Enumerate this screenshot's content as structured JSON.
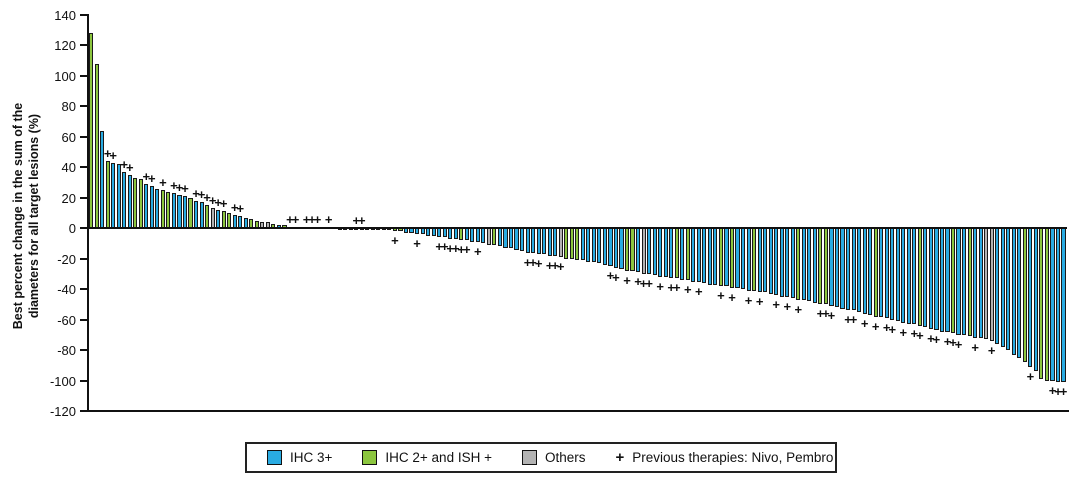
{
  "chart_data": {
    "type": "bar",
    "subtype": "waterfall",
    "title": "",
    "ylabel_line1": "Best percent change in the sum of the",
    "ylabel_line2": "diameters for all target lesions (%)",
    "ylim": [
      -120,
      140
    ],
    "yticks": [
      140,
      120,
      100,
      80,
      60,
      40,
      20,
      0,
      -20,
      -40,
      -60,
      -80,
      -100,
      -120
    ],
    "grid": "off",
    "legend_position": "bottom",
    "colors": {
      "b": "#29ABE2",
      "g": "#8CC63F",
      "o": "#B3B3B3",
      "axis": "#111111"
    },
    "legend": [
      {
        "label": "IHC 3+",
        "color": "#29ABE2"
      },
      {
        "label": "IHC 2+ and ISH +",
        "color": "#8CC63F"
      },
      {
        "label": "Others",
        "color": "#B3B3B3"
      },
      {
        "label": "Previous therapies: Nivo, Pembro",
        "symbol": "+"
      }
    ],
    "bar_format": [
      "value_percent",
      "category: b=IHC 3+, g=IHC 2+ and ISH +, o=Others",
      "previous_therapies_marker 1=yes"
    ],
    "bars": [
      [
        128,
        "g",
        0
      ],
      [
        108,
        "g",
        0
      ],
      [
        64,
        "b",
        0
      ],
      [
        44,
        "g",
        1
      ],
      [
        43,
        "b",
        1
      ],
      [
        42,
        "b",
        0
      ],
      [
        37,
        "b",
        1
      ],
      [
        35,
        "b",
        1
      ],
      [
        33,
        "g",
        0
      ],
      [
        32,
        "g",
        0
      ],
      [
        29,
        "b",
        1
      ],
      [
        28,
        "b",
        1
      ],
      [
        26,
        "b",
        0
      ],
      [
        25,
        "g",
        1
      ],
      [
        24,
        "g",
        0
      ],
      [
        23,
        "b",
        1
      ],
      [
        22,
        "b",
        1
      ],
      [
        21,
        "b",
        1
      ],
      [
        20,
        "g",
        0
      ],
      [
        18,
        "b",
        1
      ],
      [
        17,
        "b",
        1
      ],
      [
        15,
        "g",
        1
      ],
      [
        13,
        "o",
        1
      ],
      [
        12,
        "b",
        1
      ],
      [
        11,
        "g",
        1
      ],
      [
        10,
        "g",
        0
      ],
      [
        9,
        "b",
        1
      ],
      [
        8,
        "b",
        1
      ],
      [
        7,
        "b",
        0
      ],
      [
        6,
        "g",
        0
      ],
      [
        5,
        "g",
        0
      ],
      [
        4,
        "o",
        0
      ],
      [
        4,
        "o",
        0
      ],
      [
        3,
        "g",
        0
      ],
      [
        2,
        "b",
        0
      ],
      [
        2,
        "g",
        0
      ],
      [
        1,
        "g",
        1
      ],
      [
        1,
        "b",
        1
      ],
      [
        1,
        "b",
        0
      ],
      [
        1,
        "b",
        1
      ],
      [
        1,
        "b",
        1
      ],
      [
        0.5,
        "b",
        1
      ],
      [
        0.5,
        "b",
        0
      ],
      [
        0.5,
        "b",
        1
      ],
      [
        0.5,
        "b",
        0
      ],
      [
        0,
        "b",
        0
      ],
      [
        0,
        "b",
        0
      ],
      [
        0,
        "b",
        0
      ],
      [
        0,
        "b",
        1
      ],
      [
        0,
        "b",
        1
      ],
      [
        0,
        "b",
        0
      ],
      [
        -0.5,
        "b",
        0
      ],
      [
        -0.5,
        "b",
        0
      ],
      [
        -1,
        "b",
        0
      ],
      [
        -1,
        "g",
        0
      ],
      [
        -2,
        "g",
        1
      ],
      [
        -2,
        "g",
        0
      ],
      [
        -3,
        "b",
        0
      ],
      [
        -3,
        "b",
        0
      ],
      [
        -4,
        "b",
        1
      ],
      [
        -4,
        "b",
        0
      ],
      [
        -5,
        "b",
        0
      ],
      [
        -5,
        "b",
        0
      ],
      [
        -6,
        "b",
        1
      ],
      [
        -6,
        "b",
        1
      ],
      [
        -7,
        "b",
        1
      ],
      [
        -7,
        "b",
        1
      ],
      [
        -8,
        "g",
        1
      ],
      [
        -8,
        "b",
        1
      ],
      [
        -9,
        "b",
        0
      ],
      [
        -9,
        "b",
        1
      ],
      [
        -10,
        "b",
        0
      ],
      [
        -11,
        "o",
        0
      ],
      [
        -11,
        "g",
        0
      ],
      [
        -12,
        "b",
        0
      ],
      [
        -13,
        "b",
        0
      ],
      [
        -13,
        "b",
        0
      ],
      [
        -14,
        "b",
        0
      ],
      [
        -15,
        "b",
        0
      ],
      [
        -16,
        "b",
        1
      ],
      [
        -16,
        "b",
        1
      ],
      [
        -17,
        "b",
        1
      ],
      [
        -17,
        "b",
        0
      ],
      [
        -18,
        "b",
        1
      ],
      [
        -18,
        "b",
        1
      ],
      [
        -19,
        "o",
        1
      ],
      [
        -20,
        "g",
        0
      ],
      [
        -20,
        "g",
        0
      ],
      [
        -21,
        "g",
        0
      ],
      [
        -21,
        "b",
        0
      ],
      [
        -22,
        "b",
        0
      ],
      [
        -22,
        "b",
        0
      ],
      [
        -23,
        "b",
        0
      ],
      [
        -24,
        "b",
        0
      ],
      [
        -25,
        "b",
        1
      ],
      [
        -26,
        "b",
        1
      ],
      [
        -27,
        "b",
        0
      ],
      [
        -28,
        "g",
        1
      ],
      [
        -28,
        "g",
        0
      ],
      [
        -29,
        "b",
        1
      ],
      [
        -30,
        "o",
        1
      ],
      [
        -30,
        "b",
        1
      ],
      [
        -31,
        "b",
        0
      ],
      [
        -32,
        "b",
        1
      ],
      [
        -32,
        "b",
        0
      ],
      [
        -33,
        "b",
        1
      ],
      [
        -33,
        "g",
        1
      ],
      [
        -34,
        "b",
        0
      ],
      [
        -34,
        "g",
        1
      ],
      [
        -35,
        "b",
        0
      ],
      [
        -35,
        "b",
        1
      ],
      [
        -36,
        "b",
        0
      ],
      [
        -37,
        "b",
        0
      ],
      [
        -37,
        "b",
        0
      ],
      [
        -38,
        "g",
        1
      ],
      [
        -38,
        "b",
        0
      ],
      [
        -39,
        "g",
        1
      ],
      [
        -39,
        "b",
        0
      ],
      [
        -40,
        "b",
        0
      ],
      [
        -41,
        "b",
        1
      ],
      [
        -41,
        "g",
        0
      ],
      [
        -42,
        "b",
        1
      ],
      [
        -42,
        "b",
        0
      ],
      [
        -43,
        "b",
        0
      ],
      [
        -44,
        "b",
        1
      ],
      [
        -45,
        "b",
        0
      ],
      [
        -45,
        "b",
        1
      ],
      [
        -46,
        "b",
        0
      ],
      [
        -47,
        "g",
        1
      ],
      [
        -47,
        "b",
        0
      ],
      [
        -48,
        "b",
        0
      ],
      [
        -49,
        "b",
        0
      ],
      [
        -50,
        "g",
        1
      ],
      [
        -50,
        "g",
        1
      ],
      [
        -51,
        "b",
        1
      ],
      [
        -52,
        "b",
        0
      ],
      [
        -53,
        "b",
        0
      ],
      [
        -54,
        "b",
        1
      ],
      [
        -54,
        "b",
        1
      ],
      [
        -55,
        "b",
        0
      ],
      [
        -56,
        "b",
        1
      ],
      [
        -57,
        "b",
        0
      ],
      [
        -58,
        "g",
        1
      ],
      [
        -58,
        "b",
        0
      ],
      [
        -59,
        "b",
        1
      ],
      [
        -60,
        "b",
        1
      ],
      [
        -61,
        "b",
        0
      ],
      [
        -62,
        "b",
        1
      ],
      [
        -63,
        "b",
        0
      ],
      [
        -63,
        "b",
        1
      ],
      [
        -64,
        "g",
        1
      ],
      [
        -65,
        "b",
        0
      ],
      [
        -66,
        "b",
        1
      ],
      [
        -67,
        "b",
        1
      ],
      [
        -68,
        "b",
        0
      ],
      [
        -68,
        "b",
        1
      ],
      [
        -69,
        "g",
        1
      ],
      [
        -70,
        "b",
        1
      ],
      [
        -70,
        "b",
        0
      ],
      [
        -71,
        "g",
        0
      ],
      [
        -72,
        "b",
        1
      ],
      [
        -72,
        "b",
        0
      ],
      [
        -73,
        "o",
        0
      ],
      [
        -74,
        "o",
        1
      ],
      [
        -76,
        "b",
        0
      ],
      [
        -78,
        "b",
        0
      ],
      [
        -80,
        "b",
        0
      ],
      [
        -83,
        "b",
        0
      ],
      [
        -85,
        "b",
        0
      ],
      [
        -88,
        "g",
        0
      ],
      [
        -91,
        "b",
        1
      ],
      [
        -94,
        "b",
        0
      ],
      [
        -99,
        "g",
        0
      ],
      [
        -100,
        "g",
        0
      ],
      [
        -100,
        "b",
        1
      ],
      [
        -101,
        "b",
        1
      ],
      [
        -101,
        "b",
        1
      ]
    ]
  }
}
